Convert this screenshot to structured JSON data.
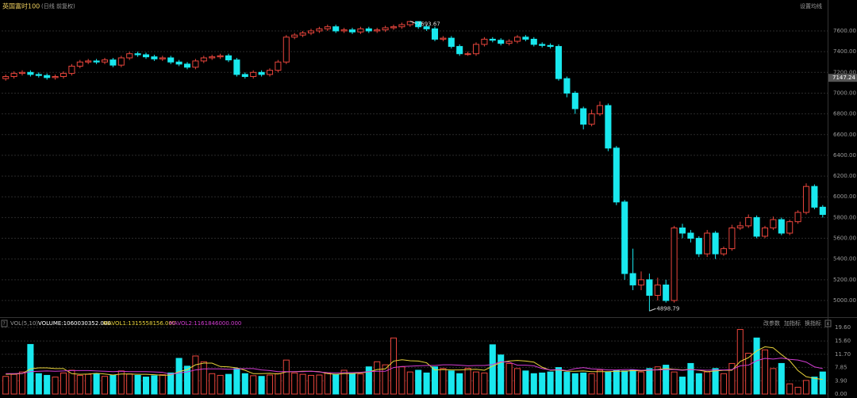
{
  "chart_data": [
    {
      "type": "candlestick",
      "title": "英国富时100",
      "subtitle": "(日线 前复权)",
      "settings_button": "设置均线",
      "up_color": "#e8453c",
      "down_color": "#19e8ee",
      "grid": true,
      "ylim": [
        4855,
        7791
      ],
      "yticks": [
        {
          "value": 5000,
          "label": "5000.00"
        },
        {
          "value": 5200,
          "label": "5200.00"
        },
        {
          "value": 5400,
          "label": "5400.00"
        },
        {
          "value": 5600,
          "label": "5600.00"
        },
        {
          "value": 5800,
          "label": "5800.00"
        },
        {
          "value": 6000,
          "label": "6000.00"
        },
        {
          "value": 6200,
          "label": "6200.00"
        },
        {
          "value": 6400,
          "label": "6400.00"
        },
        {
          "value": 6600,
          "label": "6600.00"
        },
        {
          "value": 6800,
          "label": "6800.00"
        },
        {
          "value": 7000,
          "label": "7000.00"
        },
        {
          "value": 7200,
          "label": "7200.00"
        },
        {
          "value": 7400,
          "label": "7400.00"
        },
        {
          "value": 7600,
          "label": "7600.00"
        }
      ],
      "price_tag": {
        "value": 7147.24,
        "label": "7147.24"
      },
      "max_label": "7693.67",
      "min_label": "4898.79",
      "open": [
        7140,
        7160,
        7190,
        7200,
        7180,
        7170,
        7150,
        7160,
        7190,
        7260,
        7300,
        7310,
        7300,
        7320,
        7270,
        7340,
        7380,
        7370,
        7350,
        7330,
        7340,
        7300,
        7280,
        7250,
        7310,
        7340,
        7350,
        7360,
        7320,
        7180,
        7160,
        7200,
        7180,
        7220,
        7300,
        7540,
        7560,
        7580,
        7600,
        7620,
        7640,
        7600,
        7610,
        7590,
        7620,
        7600,
        7610,
        7630,
        7640,
        7660,
        7690,
        7640,
        7620,
        7520,
        7530,
        7450,
        7380,
        7380,
        7470,
        7520,
        7510,
        7480,
        7500,
        7540,
        7520,
        7470,
        7460,
        7450,
        7140,
        7000,
        6850,
        6700,
        6800,
        6880,
        6470,
        5950,
        5260,
        5150,
        5200,
        5050,
        5150,
        5000,
        5700,
        5650,
        5600,
        5450,
        5650,
        5450,
        5500,
        5700,
        5720,
        5800,
        5620,
        5700,
        5780,
        5650,
        5760,
        5850,
        6100,
        5900
      ],
      "high": [
        7180,
        7210,
        7220,
        7220,
        7200,
        7190,
        7180,
        7210,
        7280,
        7320,
        7330,
        7330,
        7340,
        7340,
        7360,
        7400,
        7400,
        7390,
        7370,
        7360,
        7360,
        7320,
        7300,
        7330,
        7360,
        7370,
        7380,
        7380,
        7340,
        7200,
        7220,
        7220,
        7240,
        7320,
        7560,
        7580,
        7600,
        7620,
        7640,
        7660,
        7660,
        7630,
        7630,
        7640,
        7640,
        7630,
        7650,
        7660,
        7680,
        7693.67,
        7690,
        7660,
        7640,
        7550,
        7550,
        7470,
        7400,
        7490,
        7540,
        7540,
        7530,
        7520,
        7560,
        7560,
        7540,
        7490,
        7480,
        7470,
        7160,
        7020,
        6870,
        6840,
        6920,
        6900,
        6490,
        5970,
        5500,
        5280,
        5260,
        5220,
        5200,
        5720,
        5740,
        5680,
        5620,
        5680,
        5670,
        5520,
        5730,
        5760,
        5830,
        5820,
        5720,
        5810,
        5800,
        5780,
        5870,
        6130,
        6120,
        5920
      ],
      "low": [
        7120,
        7140,
        7170,
        7160,
        7150,
        7130,
        7130,
        7140,
        7170,
        7240,
        7280,
        7280,
        7280,
        7250,
        7250,
        7320,
        7350,
        7330,
        7310,
        7310,
        7280,
        7260,
        7230,
        7230,
        7290,
        7320,
        7330,
        7300,
        7160,
        7140,
        7140,
        7160,
        7160,
        7200,
        7280,
        7520,
        7540,
        7560,
        7580,
        7600,
        7580,
        7580,
        7570,
        7570,
        7580,
        7580,
        7590,
        7610,
        7620,
        7640,
        7620,
        7600,
        7500,
        7500,
        7430,
        7360,
        7360,
        7360,
        7450,
        7490,
        7460,
        7460,
        7480,
        7500,
        7450,
        7440,
        7430,
        7120,
        6960,
        6800,
        6650,
        6680,
        6780,
        6440,
        5920,
        5200,
        5100,
        5100,
        4898.79,
        5000,
        4980,
        4980,
        5600,
        5560,
        5420,
        5420,
        5400,
        5430,
        5480,
        5680,
        5700,
        5600,
        5600,
        5680,
        5630,
        5630,
        5740,
        5830,
        5880,
        5800
      ],
      "close": [
        7160,
        7190,
        7200,
        7180,
        7170,
        7150,
        7160,
        7190,
        7260,
        7300,
        7310,
        7300,
        7320,
        7270,
        7340,
        7380,
        7370,
        7350,
        7330,
        7340,
        7300,
        7280,
        7250,
        7310,
        7340,
        7350,
        7360,
        7320,
        7180,
        7160,
        7200,
        7180,
        7220,
        7300,
        7540,
        7560,
        7580,
        7600,
        7620,
        7640,
        7600,
        7610,
        7590,
        7620,
        7600,
        7610,
        7630,
        7640,
        7660,
        7690,
        7640,
        7620,
        7520,
        7530,
        7450,
        7380,
        7380,
        7470,
        7520,
        7510,
        7480,
        7500,
        7540,
        7520,
        7470,
        7460,
        7450,
        7140,
        7000,
        6850,
        6700,
        6800,
        6880,
        6470,
        5950,
        5260,
        5150,
        5200,
        5050,
        5150,
        5000,
        5700,
        5650,
        5600,
        5450,
        5650,
        5450,
        5500,
        5700,
        5720,
        5800,
        5620,
        5700,
        5780,
        5650,
        5760,
        5850,
        6100,
        5900,
        5830
      ]
    },
    {
      "type": "volume",
      "title": "VOL(5,10)",
      "buttons": [
        "改参数",
        "加指标",
        "换指标"
      ],
      "ylim": [
        0,
        19.6
      ],
      "yticks": [
        {
          "value": 0,
          "label": "0.00"
        },
        {
          "value": 3.9,
          "label": "3.90"
        },
        7.85,
        {
          "value": 11.7,
          "label": "11.70"
        },
        {
          "value": 15.6,
          "label": "15.60"
        },
        {
          "value": 19.6,
          "label": "19.60"
        }
      ],
      "series": [
        {
          "name": "VOLUME:1060030352.000",
          "color": "#ffffff",
          "values": [
            5.2,
            5.8,
            6.5,
            14.6,
            6.0,
            5.5,
            5.0,
            6.2,
            7.0,
            5.5,
            5.8,
            6.0,
            5.2,
            5.6,
            6.8,
            5.9,
            5.5,
            5.0,
            5.4,
            5.7,
            6.2,
            10.5,
            8.2,
            11.2,
            9.5,
            6.0,
            5.5,
            5.8,
            7.5,
            6.0,
            5.4,
            5.2,
            5.6,
            6.0,
            10.0,
            6.2,
            5.8,
            5.5,
            5.6,
            6.1,
            5.8,
            7.0,
            6.0,
            5.9,
            8.0,
            9.5,
            8.6,
            16.5,
            8.0,
            6.5,
            7.0,
            6.2,
            8.0,
            7.5,
            6.8,
            6.0,
            7.6,
            6.5,
            6.2,
            14.5,
            11.5,
            9.0,
            7.5,
            6.8,
            6.0,
            6.2,
            6.5,
            7.8,
            6.4,
            6.0,
            6.2,
            6.0,
            7.0,
            6.5,
            7.0,
            6.8,
            7.0,
            6.5,
            7.5,
            8.0,
            8.5,
            6.5,
            5.0,
            9.0,
            6.0,
            6.5,
            7.5,
            6.0,
            9.0,
            19.0,
            12.0,
            16.5,
            13.0,
            7.5,
            9.0,
            3.0,
            2.0,
            4.0,
            5.0,
            6.5
          ]
        },
        {
          "name": "MAVOL1:1315558156.000",
          "color": "#e8d23a",
          "values": [
            5.8,
            5.9,
            6.0,
            7.4,
            7.7,
            7.7,
            7.5,
            7.5,
            6.0,
            5.8,
            5.9,
            6.1,
            5.9,
            5.6,
            5.9,
            5.9,
            5.8,
            5.8,
            5.7,
            5.5,
            5.6,
            6.6,
            7.2,
            8.6,
            9.1,
            9.1,
            8.1,
            8.0,
            7.7,
            7.0,
            6.0,
            6.0,
            6.1,
            5.9,
            6.5,
            6.6,
            6.7,
            6.7,
            6.6,
            6.0,
            5.8,
            6.0,
            6.0,
            6.2,
            6.5,
            7.2,
            7.4,
            9.7,
            10.1,
            9.8,
            9.7,
            9.2,
            7.1,
            7.2,
            7.1,
            7.1,
            7.2,
            7.3,
            7.0,
            8.2,
            9.3,
            9.7,
            9.9,
            9.7,
            9.4,
            7.9,
            7.0,
            7.1,
            6.7,
            6.7,
            6.8,
            6.6,
            6.6,
            6.6,
            6.7,
            6.7,
            6.9,
            6.8,
            7.0,
            7.2,
            7.5,
            7.3,
            7.1,
            7.3,
            7.0,
            6.6,
            6.8,
            7.0,
            7.0,
            9.6,
            10.7,
            12.7,
            13.9,
            13.6,
            11.6,
            9.8,
            6.9,
            5.1,
            4.6,
            4.3
          ]
        },
        {
          "name": "MAVOL2:1161846000.000",
          "color": "#d23cd2",
          "values": [
            6.0,
            6.0,
            6.1,
            6.6,
            6.7,
            6.8,
            6.7,
            6.8,
            6.9,
            6.9,
            6.9,
            6.8,
            6.7,
            6.6,
            6.7,
            6.6,
            6.6,
            6.6,
            6.5,
            6.4,
            5.8,
            6.2,
            6.5,
            7.1,
            7.4,
            7.4,
            7.4,
            7.3,
            7.4,
            7.5,
            7.5,
            7.1,
            6.9,
            6.6,
            6.6,
            6.6,
            6.6,
            6.7,
            6.5,
            6.3,
            6.2,
            6.3,
            6.3,
            6.4,
            6.6,
            6.7,
            6.7,
            7.8,
            8.1,
            8.2,
            8.3,
            8.4,
            8.4,
            8.6,
            8.6,
            8.5,
            8.3,
            8.4,
            8.4,
            8.7,
            9.5,
            9.4,
            8.5,
            8.5,
            8.3,
            7.5,
            7.1,
            7.2,
            6.9,
            7.5,
            7.8,
            7.4,
            7.3,
            7.1,
            7.1,
            7.2,
            7.2,
            7.0,
            7.1,
            7.1,
            7.2,
            7.2,
            7.0,
            7.2,
            7.1,
            7.0,
            7.1,
            7.1,
            7.2,
            8.3,
            8.5,
            9.8,
            10.5,
            10.3,
            10.6,
            10.2,
            10.0,
            9.4,
            8.0,
            7.5
          ]
        }
      ]
    }
  ]
}
